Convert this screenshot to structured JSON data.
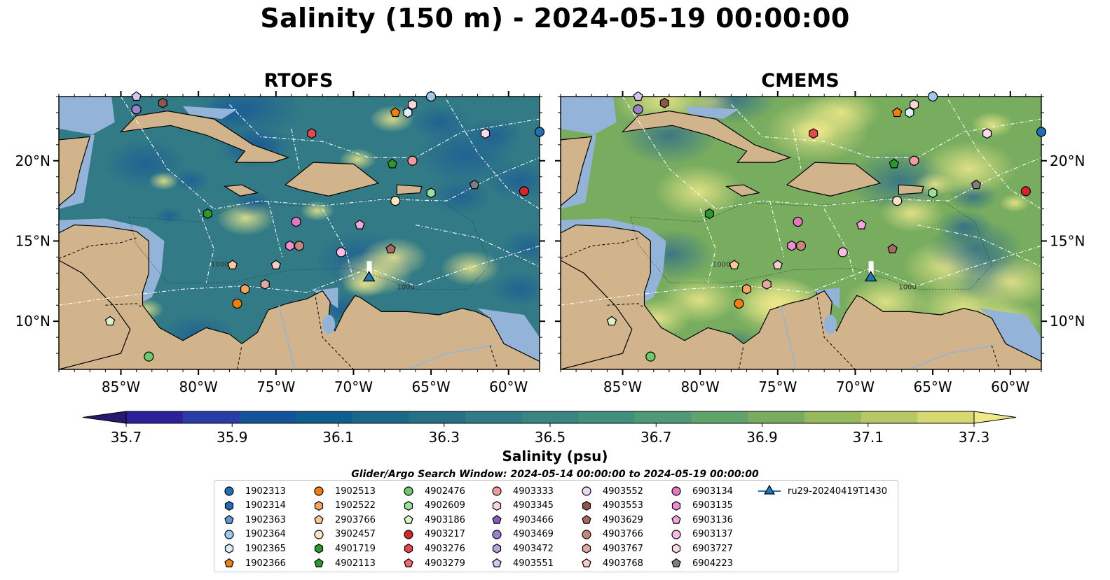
{
  "title": "Salinity (150 m) - 2024-05-19 00:00:00",
  "chart_data": {
    "type": "heatmap",
    "variable_label": "Salinity (psu)",
    "colormap": "haline",
    "colorbar": {
      "ticks": [
        "35.7",
        "35.9",
        "36.1",
        "36.3",
        "36.5",
        "36.7",
        "36.9",
        "37.1",
        "37.3"
      ],
      "vmin": 35.7,
      "vmax": 37.3,
      "step": 0.1,
      "extend": "both",
      "colors": [
        "#2a186c",
        "#2e2099",
        "#2a3da6",
        "#14539a",
        "#0e5e8f",
        "#1a6788",
        "#267187",
        "#327b86",
        "#3a8583",
        "#40907d",
        "#4e9a76",
        "#60a36b",
        "#78ad5f",
        "#97b95d",
        "#b8c867",
        "#d7d872",
        "#f0e98a"
      ]
    },
    "panels": [
      {
        "title": "RTOFS",
        "extent": {
          "lon": [
            -89,
            -58
          ],
          "lat": [
            7,
            24
          ]
        },
        "xticks": [
          "85°W",
          "80°W",
          "75°W",
          "70°W",
          "65°W",
          "60°W"
        ],
        "yticks": [
          "20°N",
          "15°N",
          "10°N"
        ],
        "isobath_labels": [
          "1000",
          "1000"
        ]
      },
      {
        "title": "CMEMS",
        "extent": {
          "lon": [
            -89,
            -58
          ],
          "lat": [
            7,
            24
          ]
        },
        "xticks": [
          "85°W",
          "80°W",
          "75°W",
          "70°W",
          "65°W",
          "60°W"
        ],
        "yticks": [
          "20°N",
          "15°N",
          "10°N"
        ],
        "isobath_labels": [
          "1000",
          "1000"
        ]
      }
    ],
    "xtick_values": [
      -85,
      -80,
      -75,
      -70,
      -65,
      -60
    ],
    "ytick_values": [
      20,
      15,
      10
    ],
    "search_window": "Glider/Argo Search Window: 2024-05-14 00:00:00 to 2024-05-19 00:00:00",
    "floats": [
      {
        "id": "1902313",
        "marker": "circle",
        "color": "#1f6fb4",
        "lon": -58.0,
        "lat": 21.8
      },
      {
        "id": "1902314",
        "marker": "hexagon",
        "color": "#1f6fb4"
      },
      {
        "id": "1902363",
        "marker": "pentagon",
        "color": "#5b9bd5"
      },
      {
        "id": "1902364",
        "marker": "circle",
        "color": "#9dc9ea",
        "lon": -65.0,
        "lat": 24.0
      },
      {
        "id": "1902365",
        "marker": "hexagon",
        "color": "#deeef9",
        "lon": -66.5,
        "lat": 23.0
      },
      {
        "id": "1902366",
        "marker": "pentagon",
        "color": "#f07f0e",
        "lon": -67.3,
        "lat": 23.0
      },
      {
        "id": "1902513",
        "marker": "circle",
        "color": "#f07f0e",
        "lon": -77.5,
        "lat": 11.1
      },
      {
        "id": "1902522",
        "marker": "hexagon",
        "color": "#f7a55b",
        "lon": -77.0,
        "lat": 12.0
      },
      {
        "id": "2903766",
        "marker": "pentagon",
        "color": "#fbc999",
        "lon": -77.8,
        "lat": 13.5
      },
      {
        "id": "3902457",
        "marker": "circle",
        "color": "#fde2c4",
        "lon": -67.3,
        "lat": 17.5
      },
      {
        "id": "4901719",
        "marker": "hexagon",
        "color": "#2a9a2a",
        "lon": -79.4,
        "lat": 16.7
      },
      {
        "id": "4902113",
        "marker": "pentagon",
        "color": "#2a9a2a",
        "lon": -67.5,
        "lat": 19.8
      },
      {
        "id": "4902476",
        "marker": "circle",
        "color": "#6cc96c",
        "lon": -83.2,
        "lat": 7.8
      },
      {
        "id": "4902609",
        "marker": "hexagon",
        "color": "#9ae09a",
        "lon": -65.0,
        "lat": 18.0
      },
      {
        "id": "4903186",
        "marker": "pentagon",
        "color": "#d8f5c8",
        "lon": -85.7,
        "lat": 10.0
      },
      {
        "id": "4903217",
        "marker": "circle",
        "color": "#d62728",
        "lon": -59.0,
        "lat": 18.1
      },
      {
        "id": "4903276",
        "marker": "hexagon",
        "color": "#e8484a",
        "lon": -72.7,
        "lat": 21.7
      },
      {
        "id": "4903279",
        "marker": "pentagon",
        "color": "#f06c6e"
      },
      {
        "id": "4903333",
        "marker": "circle",
        "color": "#f49a9a",
        "lon": -66.2,
        "lat": 20.0
      },
      {
        "id": "4903345",
        "marker": "hexagon",
        "color": "#fcd5d5",
        "lon": -66.2,
        "lat": 23.5
      },
      {
        "id": "4903466",
        "marker": "pentagon",
        "color": "#8a5bbf"
      },
      {
        "id": "4903469",
        "marker": "circle",
        "color": "#9b7fd0",
        "lon": -84.0,
        "lat": 23.2
      },
      {
        "id": "4903472",
        "marker": "hexagon",
        "color": "#b9a2e0"
      },
      {
        "id": "4903551",
        "marker": "pentagon",
        "color": "#d4c4ee",
        "lon": -84.0,
        "lat": 24.0
      },
      {
        "id": "4903552",
        "marker": "circle",
        "color": "#ead8f7"
      },
      {
        "id": "4903553",
        "marker": "hexagon",
        "color": "#8c564b",
        "lon": -82.3,
        "lat": 23.6
      },
      {
        "id": "4903629",
        "marker": "pentagon",
        "color": "#a8695e",
        "lon": -67.6,
        "lat": 14.5
      },
      {
        "id": "4903766",
        "marker": "circle",
        "color": "#c8877a",
        "lon": -73.5,
        "lat": 14.7
      },
      {
        "id": "4903767",
        "marker": "hexagon",
        "color": "#e3a9a0",
        "lon": -75.7,
        "lat": 12.3
      },
      {
        "id": "4903768",
        "marker": "pentagon",
        "color": "#f5cdc4",
        "lon": -75.0,
        "lat": 13.5
      },
      {
        "id": "6903134",
        "marker": "circle",
        "color": "#e377c2",
        "lon": -73.7,
        "lat": 16.2
      },
      {
        "id": "6903135",
        "marker": "hexagon",
        "color": "#ee8fd5",
        "lon": -74.1,
        "lat": 14.7
      },
      {
        "id": "6903136",
        "marker": "pentagon",
        "color": "#f5a6dd",
        "lon": -69.6,
        "lat": 16.0
      },
      {
        "id": "6903137",
        "marker": "circle",
        "color": "#f9bde5",
        "lon": -70.8,
        "lat": 14.3
      },
      {
        "id": "6903727",
        "marker": "hexagon",
        "color": "#fcd9ef",
        "lon": -61.5,
        "lat": 21.7
      },
      {
        "id": "6904223",
        "marker": "pentagon",
        "color": "#7f7f7f",
        "lon": -62.2,
        "lat": 18.5
      }
    ],
    "glider": {
      "id": "ru29-20240419T1430",
      "marker": "triangle",
      "color": "#1f77b4",
      "lon": -69.0,
      "lat": 12.7
    }
  }
}
